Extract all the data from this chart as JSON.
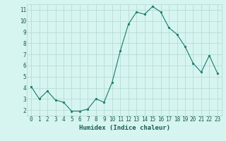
{
  "x": [
    0,
    1,
    2,
    3,
    4,
    5,
    6,
    7,
    8,
    9,
    10,
    11,
    12,
    13,
    14,
    15,
    16,
    17,
    18,
    19,
    20,
    21,
    22,
    23
  ],
  "y": [
    4.1,
    3.0,
    3.7,
    2.9,
    2.7,
    1.9,
    1.9,
    2.1,
    3.0,
    2.7,
    4.5,
    7.3,
    9.7,
    10.8,
    10.6,
    11.3,
    10.8,
    9.4,
    8.8,
    7.7,
    6.2,
    5.4,
    6.9,
    5.3
  ],
  "line_color": "#1a7a6e",
  "marker": "o",
  "marker_size": 1.8,
  "bg_color": "#d6f5f0",
  "grid_color": "#b8dbd5",
  "xlabel": "Humidex (Indice chaleur)",
  "ylim": [
    1.5,
    11.5
  ],
  "xlim": [
    -0.5,
    23.5
  ],
  "yticks": [
    2,
    3,
    4,
    5,
    6,
    7,
    8,
    9,
    10,
    11
  ],
  "xticks": [
    0,
    1,
    2,
    3,
    4,
    5,
    6,
    7,
    8,
    9,
    10,
    11,
    12,
    13,
    14,
    15,
    16,
    17,
    18,
    19,
    20,
    21,
    22,
    23
  ],
  "tick_color": "#1a5a50",
  "label_color": "#1a5a50",
  "xlabel_fontsize": 6.5,
  "tick_fontsize": 5.5,
  "line_width": 0.8
}
